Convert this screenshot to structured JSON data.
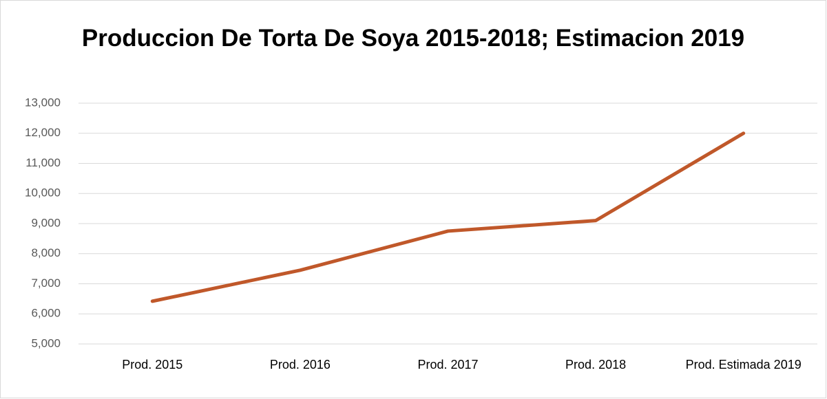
{
  "chart_data": {
    "type": "line",
    "title": "Produccion De Torta De Soya 2015-2018; Estimacion 2019",
    "categories": [
      "Prod. 2015",
      "Prod. 2016",
      "Prod. 2017",
      "Prod. 2018",
      "Prod. Estimada 2019"
    ],
    "series": [
      {
        "name": "Produccion",
        "color": "#c0582a",
        "values": [
          6420,
          7450,
          8750,
          9100,
          12000
        ]
      }
    ],
    "ylim": [
      5000,
      13000
    ],
    "yticks": [
      {
        "value": 5000,
        "label": "5,000"
      },
      {
        "value": 6000,
        "label": "6,000"
      },
      {
        "value": 7000,
        "label": "7,000"
      },
      {
        "value": 8000,
        "label": "8,000"
      },
      {
        "value": 9000,
        "label": "9,000"
      },
      {
        "value": 10000,
        "label": "10,000"
      },
      {
        "value": 11000,
        "label": "11,000"
      },
      {
        "value": 12000,
        "label": "12,000"
      },
      {
        "value": 13000,
        "label": "13,000"
      }
    ],
    "grid": true
  }
}
